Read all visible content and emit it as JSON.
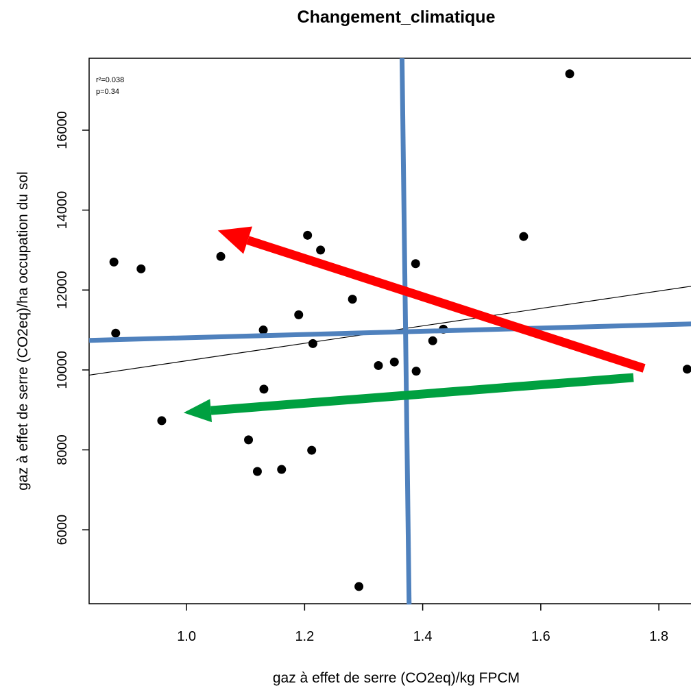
{
  "chart_data": {
    "type": "scatter",
    "title": "Changement_climatique",
    "xlabel": "gaz à effet de serre (CO2eq)/kg FPCM",
    "ylabel": "gaz à effet de serre (CO2eq)/ha occupation du sol",
    "xlim": [
      0.835,
      1.88
    ],
    "ylim": [
      4150,
      17800
    ],
    "x_ticks": [
      1.0,
      1.2,
      1.4,
      1.6,
      1.8
    ],
    "x_tick_labels": [
      "1.0",
      "1.2",
      "1.4",
      "1.6",
      "1.8"
    ],
    "y_ticks": [
      6000,
      8000,
      10000,
      12000,
      14000,
      16000
    ],
    "y_tick_labels": [
      "6000",
      "8000",
      "10000",
      "12000",
      "14000",
      "16000"
    ],
    "grid": false,
    "annotations": [
      "r²=0.038",
      "p=0.34"
    ],
    "series": [
      {
        "points": [
          {
            "x": 0.877,
            "y": 12700
          },
          {
            "x": 0.88,
            "y": 10920
          },
          {
            "x": 0.923,
            "y": 12530
          },
          {
            "x": 0.958,
            "y": 8730
          },
          {
            "x": 1.058,
            "y": 12840
          },
          {
            "x": 1.105,
            "y": 8250
          },
          {
            "x": 1.12,
            "y": 7460
          },
          {
            "x": 1.13,
            "y": 11000
          },
          {
            "x": 1.131,
            "y": 9520
          },
          {
            "x": 1.161,
            "y": 7510
          },
          {
            "x": 1.19,
            "y": 11380
          },
          {
            "x": 1.205,
            "y": 13370
          },
          {
            "x": 1.212,
            "y": 7990
          },
          {
            "x": 1.214,
            "y": 10660
          },
          {
            "x": 1.227,
            "y": 13000
          },
          {
            "x": 1.281,
            "y": 11770
          },
          {
            "x": 1.292,
            "y": 4580
          },
          {
            "x": 1.325,
            "y": 10110
          },
          {
            "x": 1.352,
            "y": 10200
          },
          {
            "x": 1.388,
            "y": 12660
          },
          {
            "x": 1.389,
            "y": 9970
          },
          {
            "x": 1.417,
            "y": 10730
          },
          {
            "x": 1.435,
            "y": 11020
          },
          {
            "x": 1.571,
            "y": 13340
          },
          {
            "x": 1.649,
            "y": 17410
          },
          {
            "x": 1.848,
            "y": 10020
          }
        ]
      }
    ],
    "regression_line": {
      "x": [
        0.835,
        1.88
      ],
      "y": [
        9870,
        12150
      ],
      "color": "#000000"
    },
    "overlays": {
      "blue_vertical": {
        "x": [
          1.365,
          1.377
        ],
        "y": [
          17800,
          4130
        ],
        "color": "#4f81bd"
      },
      "blue_horizontal": {
        "x": [
          0.835,
          1.88
        ],
        "y": [
          10740,
          11160
        ],
        "color": "#4f81bd"
      },
      "red_arrow": {
        "x": [
          1.775,
          1.053
        ],
        "y": [
          10040,
          13490
        ],
        "color": "#ff0000"
      },
      "green_arrow": {
        "x": [
          1.757,
          0.995
        ],
        "y": [
          9810,
          8930
        ],
        "color": "#00a040"
      }
    }
  }
}
